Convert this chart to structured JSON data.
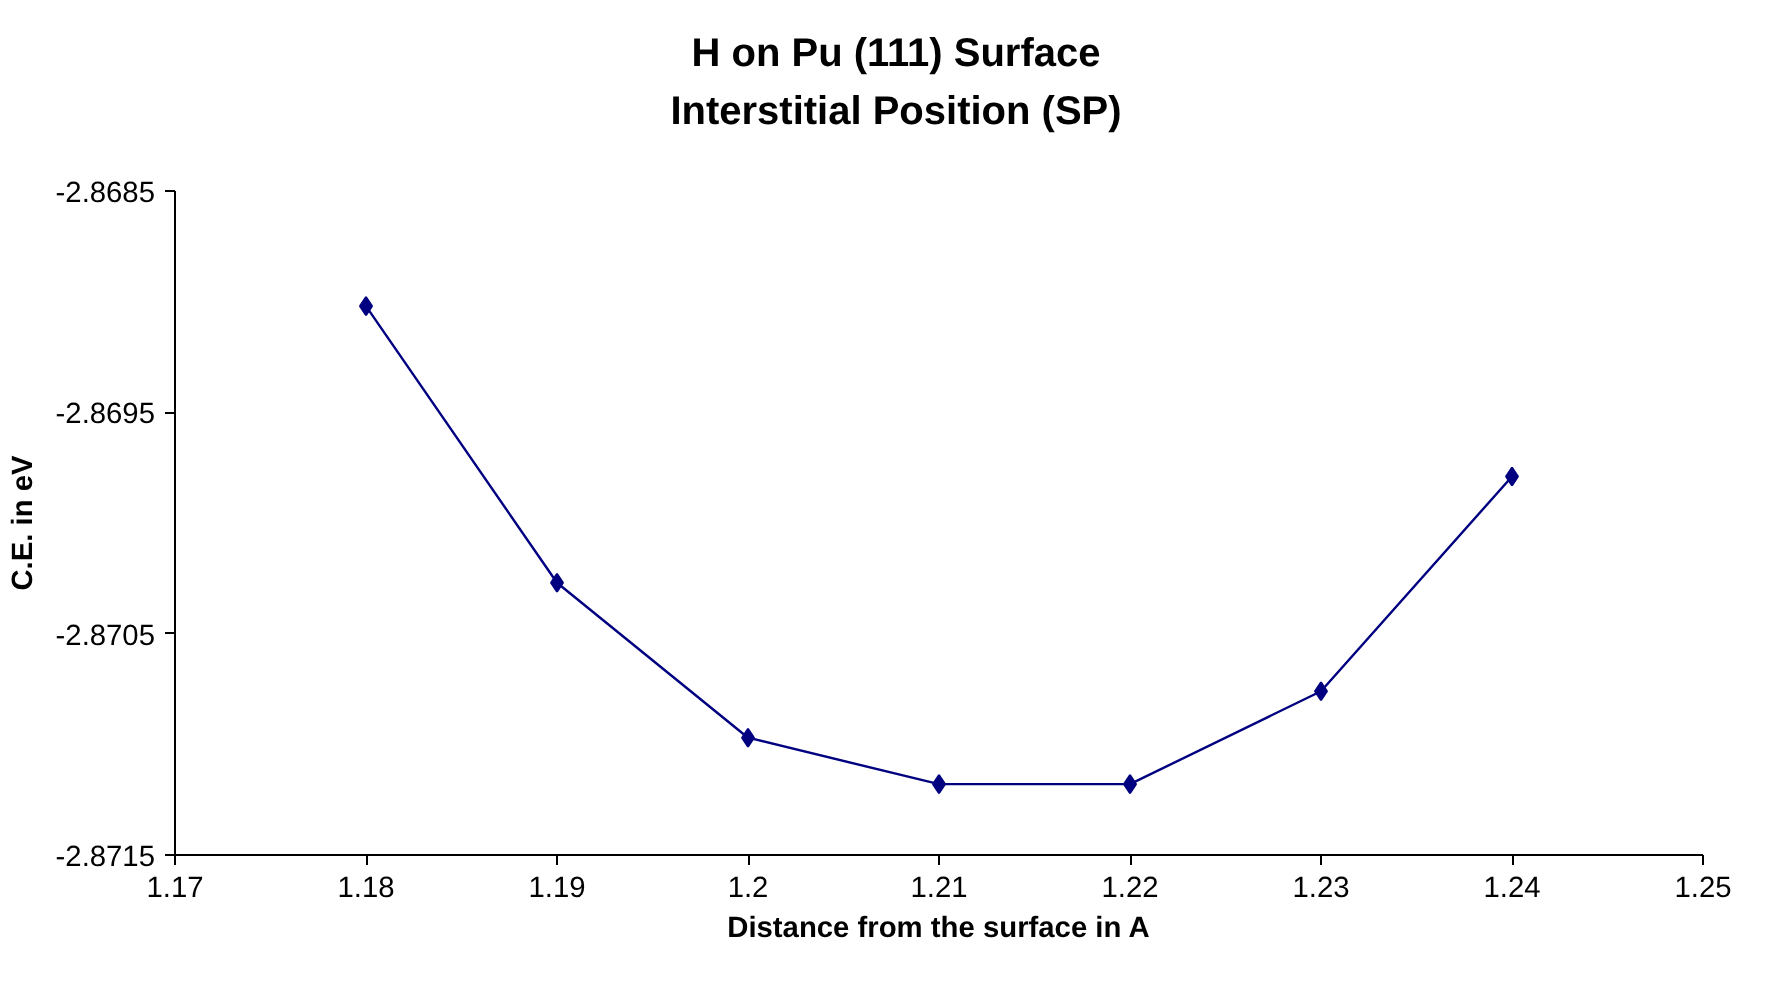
{
  "chart_data": {
    "type": "line",
    "title": "H on Pu (111) Surface\nInterstitial Position (SP)",
    "xlabel": "Distance from the surface in A",
    "ylabel": "C.E. in eV",
    "x": [
      1.18,
      1.19,
      1.2,
      1.21,
      1.22,
      1.23,
      1.24
    ],
    "series": [
      {
        "color": "#000080",
        "values": [
          -2.86902,
          -2.87027,
          -2.87097,
          -2.87118,
          -2.87118,
          -2.87076,
          -2.86979
        ]
      }
    ],
    "xlim": [
      1.17,
      1.25
    ],
    "xticks": [
      1.17,
      1.18,
      1.19,
      1.2,
      1.21,
      1.22,
      1.23,
      1.24,
      1.25
    ],
    "ylim": [
      -2.8715,
      -2.8685
    ],
    "yticks": [
      -2.8715,
      -2.8705,
      -2.8695,
      -2.8685
    ],
    "grid": false,
    "marker": "diamond",
    "line_style": "solid"
  }
}
